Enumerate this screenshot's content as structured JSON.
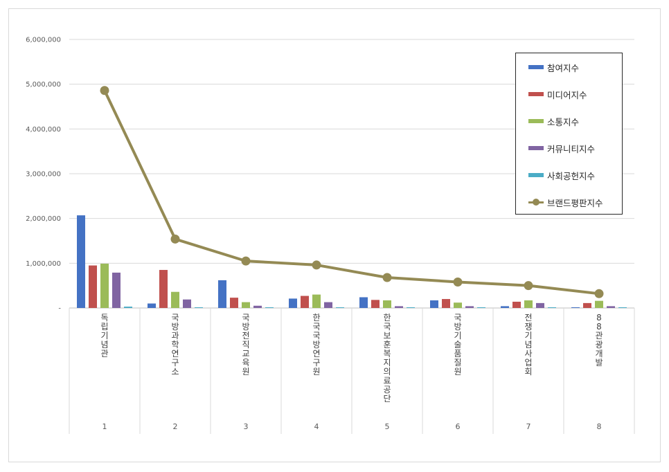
{
  "chart_data": {
    "type": "bar",
    "categories": [
      "1",
      "2",
      "3",
      "4",
      "5",
      "6",
      "7",
      "8"
    ],
    "category_names": [
      "독립기념관",
      "국방과학연구소",
      "국방전직교육원",
      "한국국방연구원",
      "한국보훈복지의료공단",
      "국방기술품질원",
      "전쟁기념사업회",
      "88관광개발"
    ],
    "ylim": [
      0,
      6000000
    ],
    "yticks": [
      {
        "value": 0,
        "label": "-"
      },
      {
        "value": 1000000,
        "label": "1,000,000"
      },
      {
        "value": 2000000,
        "label": "2,000,000"
      },
      {
        "value": 3000000,
        "label": "3,000,000"
      },
      {
        "value": 4000000,
        "label": "4,000,000"
      },
      {
        "value": 5000000,
        "label": "5,000,000"
      },
      {
        "value": 6000000,
        "label": "6,000,000"
      }
    ],
    "grid": true,
    "legend_position": "top-right",
    "series": [
      {
        "name": "참여지수",
        "kind": "bar",
        "color": "#4472c4",
        "values": [
          2070000,
          100000,
          620000,
          210000,
          240000,
          170000,
          40000,
          15000
        ]
      },
      {
        "name": "미디어지수",
        "kind": "bar",
        "color": "#c0504d",
        "values": [
          950000,
          850000,
          230000,
          270000,
          180000,
          200000,
          140000,
          110000
        ]
      },
      {
        "name": "소통지수",
        "kind": "bar",
        "color": "#9bbb59",
        "values": [
          990000,
          360000,
          130000,
          300000,
          170000,
          120000,
          170000,
          160000
        ]
      },
      {
        "name": "커뮤니티지수",
        "kind": "bar",
        "color": "#8064a2",
        "values": [
          790000,
          190000,
          50000,
          130000,
          40000,
          40000,
          110000,
          40000
        ]
      },
      {
        "name": "사회공헌지수",
        "kind": "bar",
        "color": "#4bacc6",
        "values": [
          30000,
          10000,
          10000,
          10000,
          10000,
          10000,
          10000,
          10000
        ]
      },
      {
        "name": "브랜드평판지수",
        "kind": "line",
        "color": "#948a54",
        "values": [
          4860000,
          1540000,
          1050000,
          960000,
          680000,
          580000,
          500000,
          320000
        ]
      }
    ]
  }
}
